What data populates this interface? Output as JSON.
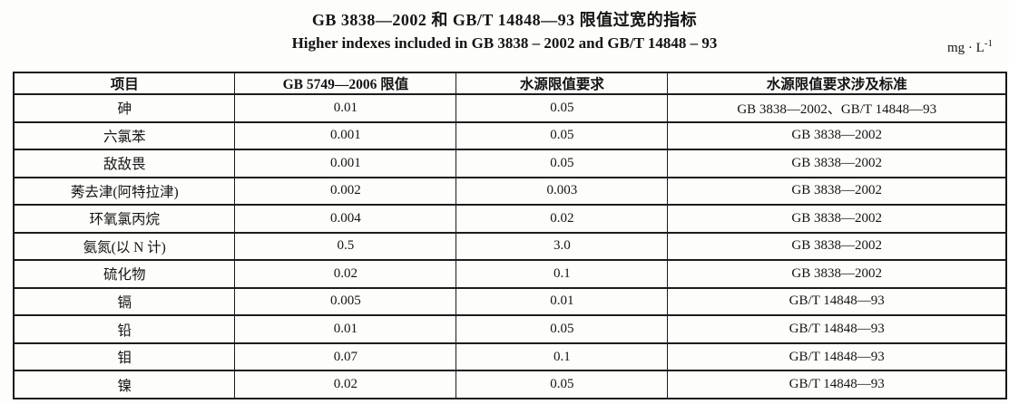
{
  "page": {
    "title_cn": "GB 3838—2002 和 GB/T 14848—93 限值过宽的指标",
    "title_en": "Higher indexes included in GB 3838 – 2002 and GB/T 14848 – 93",
    "unit": {
      "text": "mg · L",
      "superscript": "-1"
    }
  },
  "table": {
    "headers": [
      "项目",
      "GB 5749—2006 限值",
      "水源限值要求",
      "水源限值要求涉及标准"
    ],
    "rows": [
      [
        "砷",
        "0.01",
        "0.05",
        "GB 3838—2002、GB/T 14848—93"
      ],
      [
        "六氯苯",
        "0.001",
        "0.05",
        "GB 3838—2002"
      ],
      [
        "敌敌畏",
        "0.001",
        "0.05",
        "GB 3838—2002"
      ],
      [
        "莠去津(阿特拉津)",
        "0.002",
        "0.003",
        "GB 3838—2002"
      ],
      [
        "环氧氯丙烷",
        "0.004",
        "0.02",
        "GB 3838—2002"
      ],
      [
        "氨氮(以 N 计)",
        "0.5",
        "3.0",
        "GB 3838—2002"
      ],
      [
        "硫化物",
        "0.02",
        "0.1",
        "GB 3838—2002"
      ],
      [
        "镉",
        "0.005",
        "0.01",
        "GB/T 14848—93"
      ],
      [
        "铅",
        "0.01",
        "0.05",
        "GB/T 14848—93"
      ],
      [
        "钼",
        "0.07",
        "0.1",
        "GB/T 14848—93"
      ],
      [
        "镍",
        "0.02",
        "0.05",
        "GB/T 14848—93"
      ]
    ]
  }
}
